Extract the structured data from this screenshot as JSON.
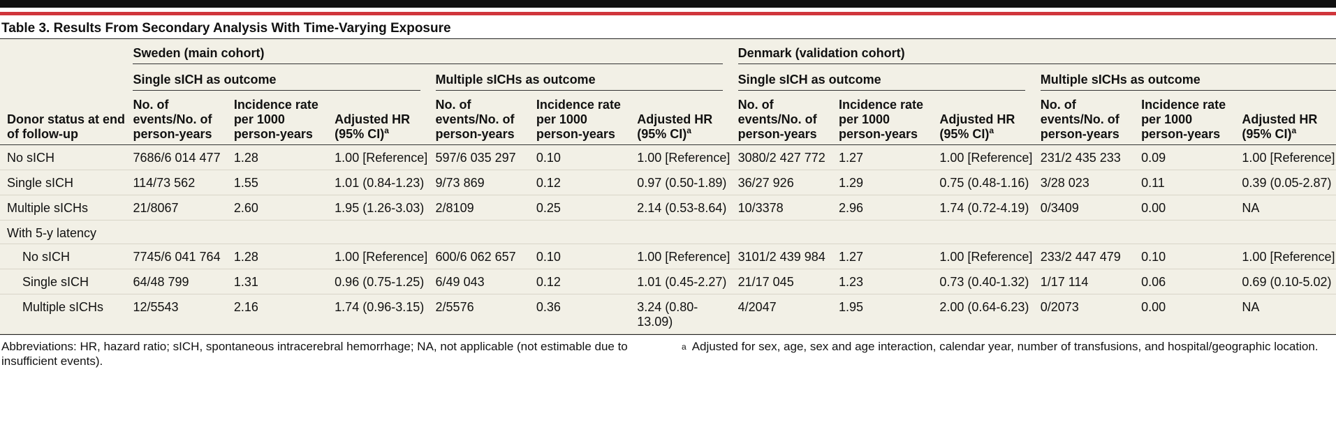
{
  "title": "Table 3. Results From Secondary Analysis With Time-Varying Exposure",
  "groups": {
    "sweden": "Sweden (main cohort)",
    "denmark": "Denmark (validation cohort)"
  },
  "subgroups": {
    "single": "Single sICH as outcome",
    "multiple": "Multiple sICHs as outcome"
  },
  "row_header": "Donor status at end of follow-up",
  "col_headers": {
    "events": "No. of events/No. of person-years",
    "rate": "Incidence rate per 1000 person-years",
    "hr": "Adjusted HR (95% CI)",
    "hr_mark": "a"
  },
  "rows": [
    {
      "label": "No sICH",
      "indent": false,
      "cells": [
        "7686/6 014 477",
        "1.28",
        "1.00 [Reference]",
        "597/6 035 297",
        "0.10",
        "1.00 [Reference]",
        "3080/2 427 772",
        "1.27",
        "1.00 [Reference]",
        "231/2 435 233",
        "0.09",
        "1.00 [Reference]"
      ]
    },
    {
      "label": "Single sICH",
      "indent": false,
      "cells": [
        "114/73 562",
        "1.55",
        "1.01 (0.84-1.23)",
        "9/73 869",
        "0.12",
        "0.97 (0.50-1.89)",
        "36/27 926",
        "1.29",
        "0.75 (0.48-1.16)",
        "3/28 023",
        "0.11",
        "0.39 (0.05-2.87)"
      ]
    },
    {
      "label": "Multiple sICHs",
      "indent": false,
      "cells": [
        "21/8067",
        "2.60",
        "1.95 (1.26-3.03)",
        "2/8109",
        "0.25",
        "2.14 (0.53-8.64)",
        "10/3378",
        "2.96",
        "1.74 (0.72-4.19)",
        "0/3409",
        "0.00",
        "NA"
      ]
    }
  ],
  "section_label": "With 5-y latency",
  "latency_rows": [
    {
      "label": "No sICH",
      "indent": true,
      "cells": [
        "7745/6 041 764",
        "1.28",
        "1.00 [Reference]",
        "600/6 062 657",
        "0.10",
        "1.00 [Reference]",
        "3101/2 439 984",
        "1.27",
        "1.00 [Reference]",
        "233/2 447 479",
        "0.10",
        "1.00 [Reference]"
      ]
    },
    {
      "label": "Single sICH",
      "indent": true,
      "cells": [
        "64/48 799",
        "1.31",
        "0.96 (0.75-1.25)",
        "6/49 043",
        "0.12",
        "1.01 (0.45-2.27)",
        "21/17 045",
        "1.23",
        "0.73 (0.40-1.32)",
        "1/17 114",
        "0.06",
        "0.69 (0.10-5.02)"
      ]
    },
    {
      "label": "Multiple sICHs",
      "indent": true,
      "cells": [
        "12/5543",
        "2.16",
        "1.74 (0.96-3.15)",
        "2/5576",
        "0.36",
        "3.24 (0.80-13.09)",
        "4/2047",
        "1.95",
        "2.00 (0.64-6.23)",
        "0/2073",
        "0.00",
        "NA"
      ]
    }
  ],
  "footnotes": {
    "abbreviations": "Abbreviations: HR, hazard ratio; sICH, spontaneous intracerebral hemorrhage; NA, not applicable (not estimable due to insufficient events).",
    "a_mark": "a",
    "a_text": "Adjusted for sex, age, sex and age interaction, calendar year, number of transfusions, and hospital/geographic location."
  }
}
